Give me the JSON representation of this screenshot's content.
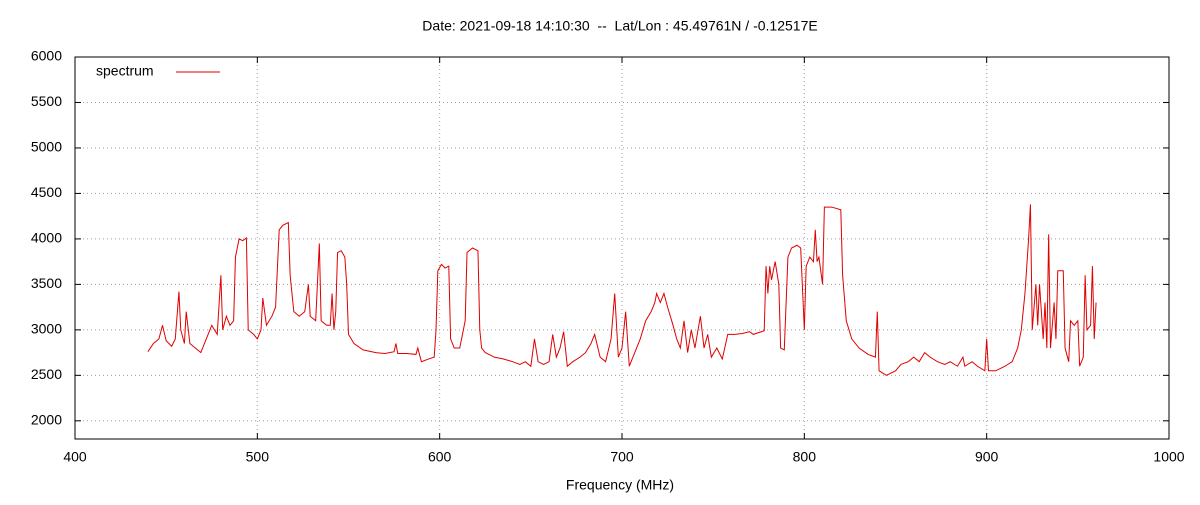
{
  "chart_data": {
    "type": "line",
    "title": "Date: 2021-09-18 14:10:30  --  Lat/Lon : 45.49761N / -0.12517E",
    "xlabel": "Frequency (MHz)",
    "legend": "top-left",
    "grid": true,
    "xlim": [
      400,
      1000
    ],
    "xticks": [
      400,
      500,
      600,
      700,
      800,
      900,
      1000
    ],
    "ylim": [
      1800,
      6000
    ],
    "yticks": [
      2000,
      2500,
      3000,
      3500,
      4000,
      4500,
      5000,
      5500,
      6000
    ],
    "x": [
      440,
      443,
      446,
      448,
      450,
      453,
      455,
      457,
      458,
      460,
      461,
      463,
      466,
      469,
      472,
      475,
      478,
      480,
      481,
      483,
      485,
      487,
      488,
      490,
      492,
      494,
      495,
      498,
      500,
      502,
      503,
      505,
      508,
      510,
      512,
      514,
      517,
      518,
      520,
      523,
      526,
      528,
      529,
      532,
      534,
      535,
      538,
      540,
      541,
      542,
      543,
      544,
      546,
      548,
      549,
      550,
      553,
      558,
      565,
      570,
      575,
      576,
      577,
      582,
      587,
      588,
      590,
      594,
      597,
      598,
      599,
      601,
      603,
      605,
      606,
      608,
      611,
      614,
      615,
      618,
      621,
      622,
      623,
      625,
      630,
      635,
      640,
      644,
      647,
      650,
      652,
      654,
      657,
      660,
      662,
      664,
      666,
      668,
      670,
      673,
      677,
      680,
      683,
      685,
      688,
      691,
      694,
      696,
      698,
      700,
      702,
      704,
      707,
      710,
      713,
      716,
      718,
      719,
      721,
      723,
      725,
      728,
      730,
      732,
      734,
      736,
      738,
      740,
      743,
      745,
      747,
      749,
      752,
      755,
      758,
      762,
      766,
      770,
      772,
      778,
      779,
      780,
      781,
      782,
      784,
      786,
      787,
      789,
      791,
      793,
      796,
      798,
      800,
      801,
      803,
      805,
      806,
      807,
      808,
      810,
      811,
      815,
      820,
      821,
      823,
      826,
      830,
      835,
      839,
      840,
      841,
      845,
      850,
      853,
      857,
      860,
      863,
      866,
      869,
      873,
      877,
      880,
      884,
      887,
      888,
      892,
      895,
      899,
      900,
      901,
      905,
      910,
      914,
      917,
      919,
      921,
      923,
      924,
      925,
      927,
      928,
      929,
      931,
      932,
      933,
      934,
      935,
      937,
      938,
      939,
      942,
      943,
      945,
      946,
      948,
      950,
      951,
      953,
      954,
      955,
      957,
      958,
      959,
      960
    ],
    "series": [
      {
        "name": "spectrum",
        "color": "#e00000",
        "values": [
          2760,
          2850,
          2900,
          3050,
          2880,
          2820,
          2900,
          3420,
          3000,
          2850,
          3200,
          2850,
          2800,
          2750,
          2900,
          3050,
          2950,
          3600,
          3000,
          3150,
          3050,
          3100,
          3800,
          4000,
          3980,
          4010,
          3000,
          2950,
          2900,
          3000,
          3350,
          3050,
          3150,
          3250,
          4100,
          4150,
          4180,
          3600,
          3200,
          3150,
          3200,
          3500,
          3150,
          3100,
          3950,
          3100,
          3050,
          3050,
          3400,
          3000,
          3200,
          3850,
          3870,
          3800,
          3500,
          2950,
          2850,
          2780,
          2750,
          2740,
          2760,
          2850,
          2740,
          2740,
          2730,
          2800,
          2650,
          2680,
          2700,
          3000,
          3650,
          3720,
          3680,
          3700,
          2900,
          2800,
          2800,
          3100,
          3850,
          3900,
          3870,
          3000,
          2800,
          2750,
          2700,
          2680,
          2650,
          2620,
          2650,
          2600,
          2900,
          2650,
          2620,
          2650,
          2950,
          2700,
          2800,
          2980,
          2600,
          2650,
          2700,
          2750,
          2850,
          2950,
          2700,
          2650,
          2900,
          3400,
          2700,
          2800,
          3200,
          2600,
          2750,
          2900,
          3100,
          3200,
          3300,
          3400,
          3300,
          3400,
          3250,
          3050,
          2900,
          2800,
          3100,
          2750,
          3000,
          2800,
          3150,
          2800,
          2950,
          2700,
          2800,
          2680,
          2950,
          2950,
          2960,
          2980,
          2950,
          2990,
          3700,
          3400,
          3700,
          3550,
          3750,
          3500,
          2800,
          2780,
          3800,
          3900,
          3930,
          3900,
          3000,
          3700,
          3800,
          3750,
          4100,
          3750,
          3800,
          3500,
          4350,
          4350,
          4320,
          3600,
          3100,
          2900,
          2800,
          2730,
          2700,
          3200,
          2550,
          2500,
          2550,
          2620,
          2650,
          2700,
          2650,
          2750,
          2700,
          2650,
          2620,
          2650,
          2600,
          2700,
          2600,
          2650,
          2600,
          2550,
          2900,
          2550,
          2550,
          2600,
          2650,
          2800,
          3000,
          3400,
          4000,
          4380,
          3000,
          3500,
          3050,
          3500,
          2900,
          3300,
          2800,
          4050,
          2800,
          3300,
          2900,
          3650,
          3650,
          2800,
          2650,
          3100,
          3050,
          3100,
          2600,
          2700,
          3600,
          3000,
          3050,
          3700,
          2900,
          3300
        ]
      }
    ]
  }
}
